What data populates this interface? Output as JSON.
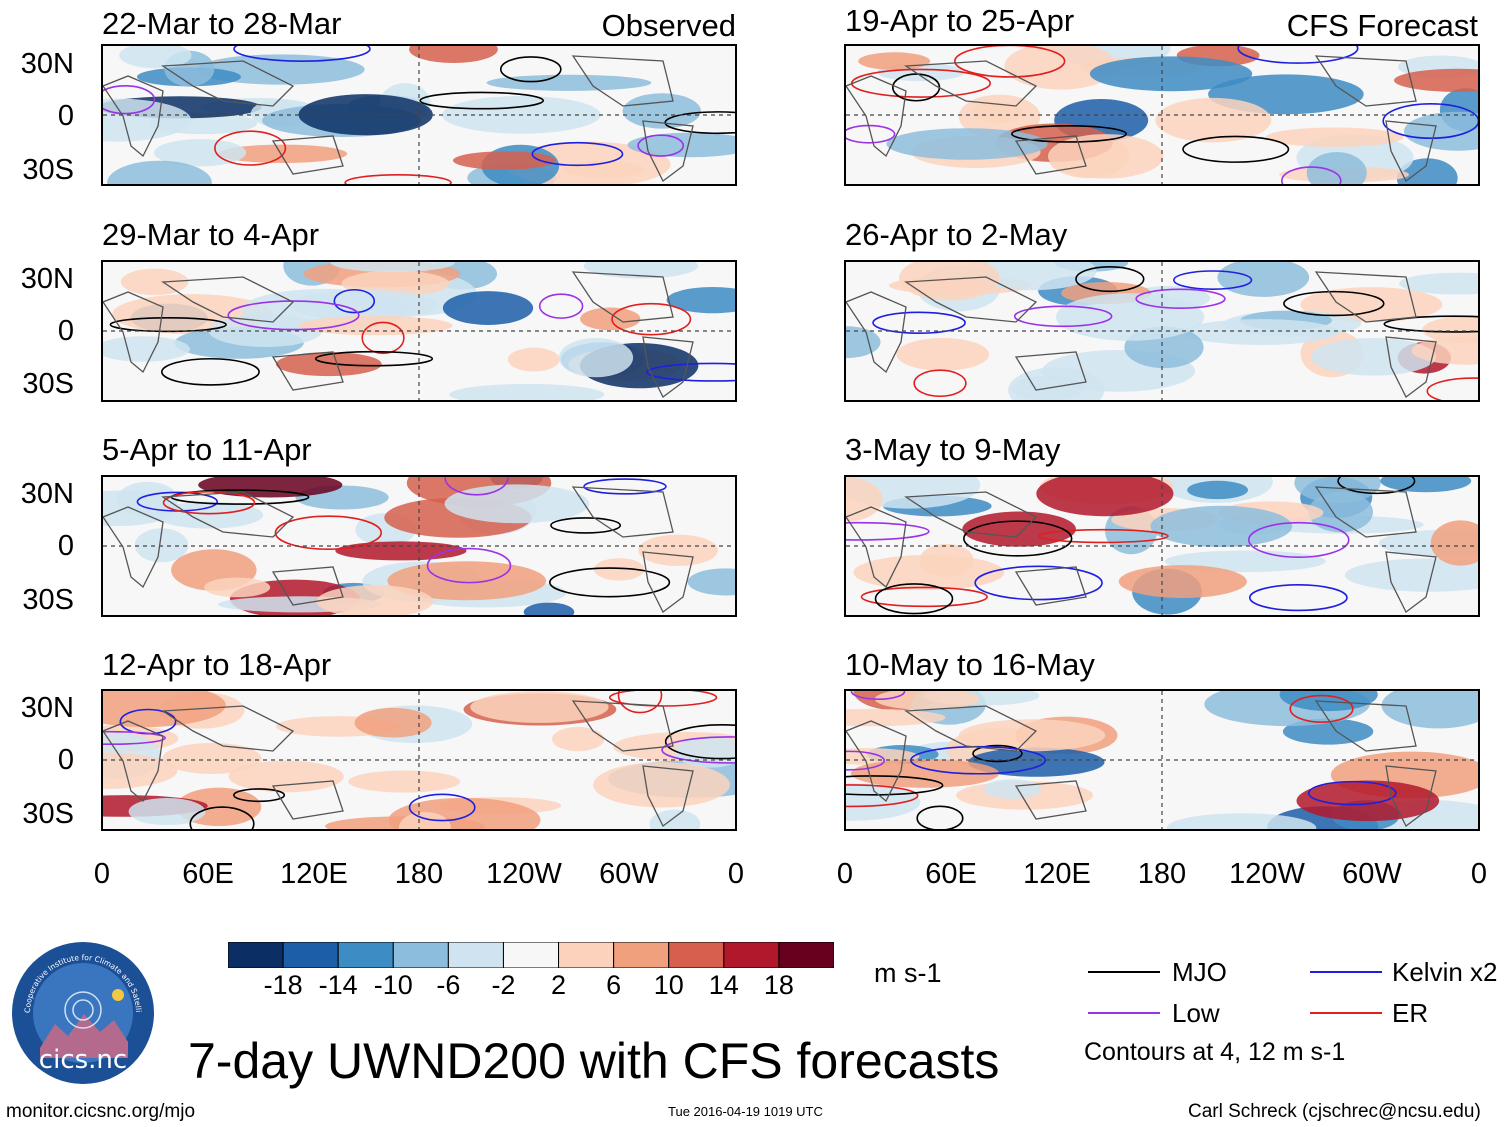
{
  "chart_data": {
    "type": "heatmap",
    "title": "7-day UWND200 with CFS forecasts",
    "units": "m s-1",
    "colorbar": {
      "ticks": [
        "-18",
        "-14",
        "-10",
        "-6",
        "-2",
        "2",
        "6",
        "10",
        "14",
        "18"
      ],
      "colors": [
        "#0b2f64",
        "#1c5ea8",
        "#3d8cc4",
        "#8dbddc",
        "#cfe4f0",
        "#f7f7f7",
        "#fbd3bd",
        "#f1a07e",
        "#d6604d",
        "#b2182b",
        "#67001f"
      ]
    },
    "x_ticks": [
      "0",
      "60E",
      "120E",
      "180",
      "120W",
      "60W",
      "0"
    ],
    "y_ticks": [
      "30N",
      "0",
      "30S"
    ],
    "observed": {
      "tag": "Observed",
      "panels": [
        {
          "title": "22-Mar to 28-Mar"
        },
        {
          "title": "29-Mar to 4-Apr"
        },
        {
          "title": "5-Apr to 11-Apr"
        },
        {
          "title": "12-Apr to 18-Apr"
        }
      ]
    },
    "forecast": {
      "tag": "CFS Forecast",
      "panels": [
        {
          "title": "19-Apr to 25-Apr"
        },
        {
          "title": "26-Apr to 2-May"
        },
        {
          "title": "3-May to 9-May"
        },
        {
          "title": "10-May to 16-May"
        }
      ]
    },
    "legend": [
      {
        "label": "MJO",
        "color": "#000000"
      },
      {
        "label": "Kelvin x2",
        "color": "#1f1fe0"
      },
      {
        "label": "Low",
        "color": "#9a32e8"
      },
      {
        "label": "ER",
        "color": "#e01f1f"
      }
    ],
    "contour_note": "Contours at 4, 12 m s-1"
  },
  "footer": {
    "logo_text": "cics.nc",
    "logo_ring_text": "Cooperative Institute for Climate and Satellites",
    "site": "monitor.cicsnc.org/mjo",
    "timestamp": "Tue 2016-04-19 1019 UTC",
    "author": "Carl Schreck (cjschrec@ncsu.edu)"
  }
}
